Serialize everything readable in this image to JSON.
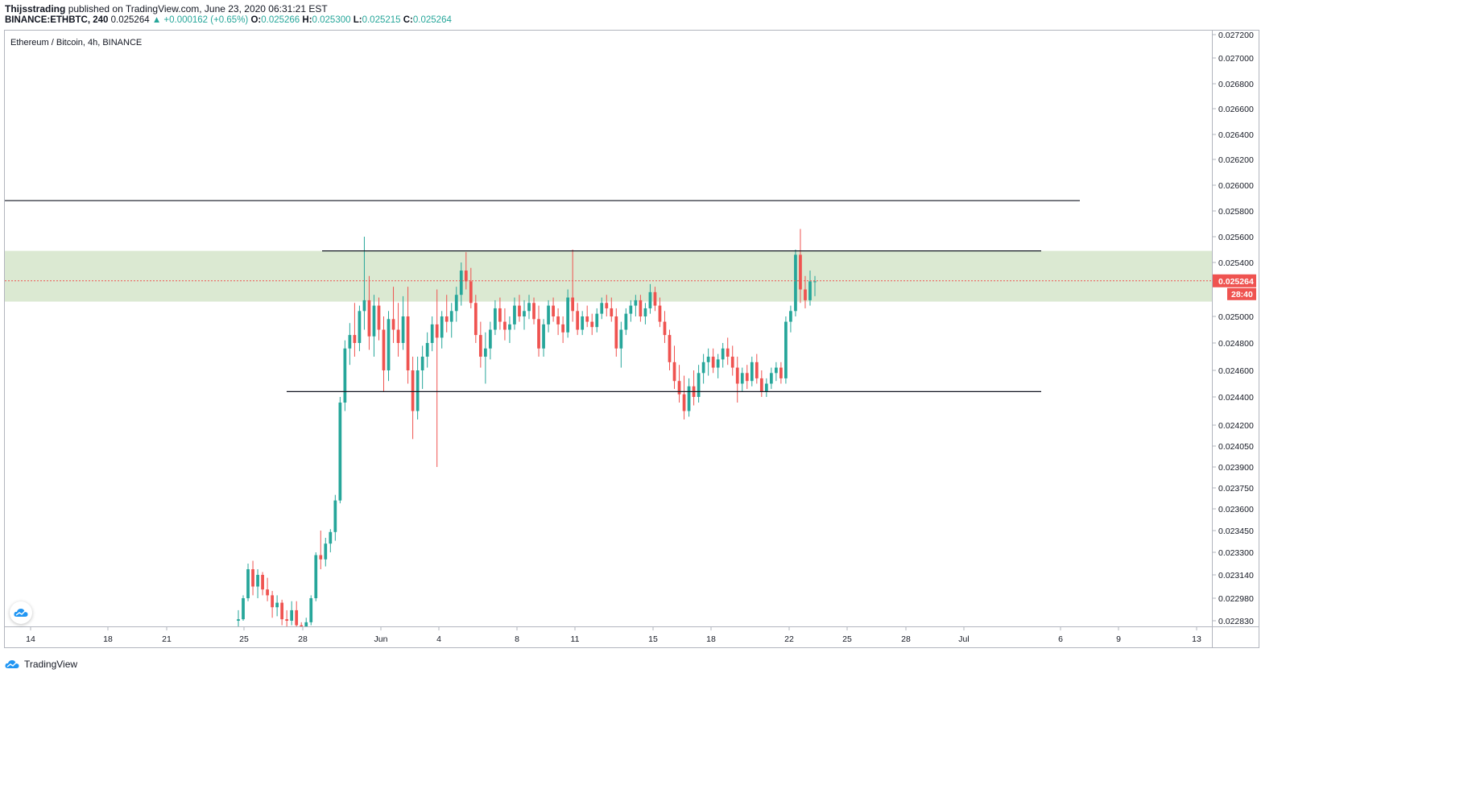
{
  "header": {
    "author": "Thijsstrading",
    "published": "published on TradingView.com, June 23, 2020 06:31:21 EST",
    "symbol_line": "BINANCE:ETHBTC, 240",
    "last": "0.025264",
    "change": "▲ +0.000162 (+0.65%)",
    "o_label": "O:",
    "o_value": "0.025266",
    "h_label": "H:",
    "h_value": "0.025300",
    "l_label": "L:",
    "l_value": "0.025215",
    "c_label": "C:",
    "c_value": "0.025264"
  },
  "footer": {
    "brand": "TradingView"
  },
  "colors": {
    "up": "#26a69a",
    "down": "#ef5350",
    "zone": "#dbe9d2",
    "price": "#ef5350"
  },
  "chart_data": {
    "type": "candlestick",
    "title": "Ethereum / Bitcoin, 4h, BINANCE",
    "x_ticks": [
      "14",
      "18",
      "21",
      "25",
      "28",
      "Jun",
      "4",
      "8",
      "11",
      "15",
      "18",
      "22",
      "25",
      "28",
      "Jul",
      "6",
      "9",
      "13"
    ],
    "y_ticks": [
      "0.027200",
      "0.027000",
      "0.026800",
      "0.026600",
      "0.026400",
      "0.026200",
      "0.026000",
      "0.025800",
      "0.025600",
      "0.025400",
      "0.025000",
      "0.024800",
      "0.024600",
      "0.024400",
      "0.024200",
      "0.024050",
      "0.023900",
      "0.023750",
      "0.023600",
      "0.023450",
      "0.023300",
      "0.023140",
      "0.022980",
      "0.022830"
    ],
    "last_price": "0.025264",
    "countdown": "28:40",
    "zone": [
      0.02511,
      0.02549
    ],
    "levels": [
      0.02588,
      0.02549,
      0.02444
    ],
    "ohlc": [
      [
        0.02283,
        0.0229,
        0.02278,
        0.02284
      ],
      [
        0.02284,
        0.023,
        0.02283,
        0.02298
      ],
      [
        0.02298,
        0.02322,
        0.02296,
        0.02318
      ],
      [
        0.02318,
        0.02324,
        0.023,
        0.02306
      ],
      [
        0.02306,
        0.02318,
        0.02298,
        0.02314
      ],
      [
        0.02314,
        0.02316,
        0.023,
        0.02304
      ],
      [
        0.02304,
        0.02312,
        0.02296,
        0.023
      ],
      [
        0.023,
        0.02303,
        0.02285,
        0.02292
      ],
      [
        0.02292,
        0.023,
        0.02286,
        0.02295
      ],
      [
        0.02295,
        0.02297,
        0.0228,
        0.02284
      ],
      [
        0.02284,
        0.0229,
        0.02275,
        0.02283
      ],
      [
        0.02283,
        0.02296,
        0.0228,
        0.0229
      ],
      [
        0.0229,
        0.02296,
        0.02276,
        0.0228
      ],
      [
        0.0228,
        0.02282,
        0.0227,
        0.02272
      ],
      [
        0.02272,
        0.02285,
        0.02268,
        0.02282
      ],
      [
        0.02282,
        0.023,
        0.0228,
        0.02298
      ],
      [
        0.02298,
        0.0233,
        0.02296,
        0.02328
      ],
      [
        0.02328,
        0.02345,
        0.02318,
        0.02325
      ],
      [
        0.02325,
        0.0234,
        0.0232,
        0.02336
      ],
      [
        0.02336,
        0.02346,
        0.0233,
        0.02344
      ],
      [
        0.02344,
        0.0237,
        0.02338,
        0.02366
      ],
      [
        0.02366,
        0.0244,
        0.02364,
        0.02436
      ],
      [
        0.02436,
        0.02482,
        0.0243,
        0.02476
      ],
      [
        0.02476,
        0.02495,
        0.02464,
        0.02486
      ],
      [
        0.02486,
        0.0251,
        0.0247,
        0.0248
      ],
      [
        0.0248,
        0.02508,
        0.02474,
        0.02504
      ],
      [
        0.02504,
        0.0256,
        0.0249,
        0.02512
      ],
      [
        0.02512,
        0.0253,
        0.02475,
        0.02485
      ],
      [
        0.02485,
        0.02516,
        0.0247,
        0.02508
      ],
      [
        0.02508,
        0.02514,
        0.02482,
        0.0249
      ],
      [
        0.0249,
        0.025,
        0.02444,
        0.0246
      ],
      [
        0.0246,
        0.02504,
        0.02452,
        0.02498
      ],
      [
        0.02498,
        0.02522,
        0.0248,
        0.0249
      ],
      [
        0.0249,
        0.0251,
        0.0247,
        0.0248
      ],
      [
        0.0248,
        0.02515,
        0.02475,
        0.025
      ],
      [
        0.025,
        0.02522,
        0.0245,
        0.0246
      ],
      [
        0.0246,
        0.0247,
        0.0241,
        0.0243
      ],
      [
        0.0243,
        0.0247,
        0.02424,
        0.0246
      ],
      [
        0.0246,
        0.02478,
        0.02446,
        0.0247
      ],
      [
        0.0247,
        0.02488,
        0.02462,
        0.0248
      ],
      [
        0.0248,
        0.025,
        0.02474,
        0.02494
      ],
      [
        0.02494,
        0.0252,
        0.0239,
        0.02484
      ],
      [
        0.02484,
        0.02504,
        0.02476,
        0.025
      ],
      [
        0.025,
        0.02516,
        0.02488,
        0.02496
      ],
      [
        0.02496,
        0.0251,
        0.02484,
        0.02504
      ],
      [
        0.02504,
        0.02522,
        0.02496,
        0.02516
      ],
      [
        0.02516,
        0.0254,
        0.02508,
        0.02534
      ],
      [
        0.02534,
        0.02548,
        0.0252,
        0.02526
      ],
      [
        0.02526,
        0.02536,
        0.02506,
        0.0251
      ],
      [
        0.0251,
        0.02516,
        0.0248,
        0.02486
      ],
      [
        0.02486,
        0.02496,
        0.02462,
        0.0247
      ],
      [
        0.0247,
        0.02488,
        0.0245,
        0.02476
      ],
      [
        0.02476,
        0.02496,
        0.02468,
        0.0249
      ],
      [
        0.0249,
        0.02512,
        0.02486,
        0.02506
      ],
      [
        0.02506,
        0.02514,
        0.0249,
        0.02496
      ],
      [
        0.02496,
        0.02506,
        0.02482,
        0.0249
      ],
      [
        0.0249,
        0.025,
        0.0248,
        0.02494
      ],
      [
        0.02494,
        0.02514,
        0.0249,
        0.02508
      ],
      [
        0.02508,
        0.02516,
        0.02496,
        0.025
      ],
      [
        0.025,
        0.02512,
        0.0249,
        0.02504
      ],
      [
        0.02504,
        0.02516,
        0.02498,
        0.0251
      ],
      [
        0.0251,
        0.02514,
        0.02494,
        0.02498
      ],
      [
        0.02498,
        0.02508,
        0.0247,
        0.02476
      ],
      [
        0.02476,
        0.02498,
        0.0247,
        0.02494
      ],
      [
        0.02494,
        0.02512,
        0.02488,
        0.02508
      ],
      [
        0.02508,
        0.02514,
        0.02496,
        0.025
      ],
      [
        0.025,
        0.02506,
        0.02486,
        0.02494
      ],
      [
        0.02494,
        0.025,
        0.0248,
        0.02488
      ],
      [
        0.02488,
        0.0252,
        0.02484,
        0.02514
      ],
      [
        0.02514,
        0.0255,
        0.02496,
        0.02504
      ],
      [
        0.02504,
        0.0251,
        0.02486,
        0.0249
      ],
      [
        0.0249,
        0.02504,
        0.02486,
        0.025
      ],
      [
        0.025,
        0.02508,
        0.02492,
        0.02496
      ],
      [
        0.02496,
        0.02502,
        0.02486,
        0.02492
      ],
      [
        0.02492,
        0.02506,
        0.02488,
        0.02502
      ],
      [
        0.02502,
        0.02514,
        0.02498,
        0.0251
      ],
      [
        0.0251,
        0.02516,
        0.025,
        0.02506
      ],
      [
        0.02506,
        0.02514,
        0.02496,
        0.025
      ],
      [
        0.025,
        0.02506,
        0.0247,
        0.02476
      ],
      [
        0.02476,
        0.02496,
        0.02462,
        0.0249
      ],
      [
        0.0249,
        0.02506,
        0.02486,
        0.02502
      ],
      [
        0.02502,
        0.02512,
        0.02496,
        0.02508
      ],
      [
        0.02508,
        0.02516,
        0.025,
        0.02512
      ],
      [
        0.02512,
        0.02516,
        0.02496,
        0.025
      ],
      [
        0.025,
        0.0251,
        0.02494,
        0.02506
      ],
      [
        0.02506,
        0.02524,
        0.02502,
        0.02518
      ],
      [
        0.02518,
        0.02522,
        0.02504,
        0.02508
      ],
      [
        0.02508,
        0.02514,
        0.02492,
        0.02496
      ],
      [
        0.02496,
        0.02504,
        0.0248,
        0.02486
      ],
      [
        0.02486,
        0.0249,
        0.0246,
        0.02466
      ],
      [
        0.02466,
        0.02478,
        0.02446,
        0.02452
      ],
      [
        0.02452,
        0.02464,
        0.02436,
        0.02442
      ],
      [
        0.02442,
        0.02456,
        0.02424,
        0.0243
      ],
      [
        0.0243,
        0.02454,
        0.02426,
        0.02448
      ],
      [
        0.02448,
        0.0246,
        0.02434,
        0.0244
      ],
      [
        0.0244,
        0.02464,
        0.02436,
        0.02458
      ],
      [
        0.02458,
        0.02472,
        0.0245,
        0.02466
      ],
      [
        0.02466,
        0.02476,
        0.02456,
        0.0247
      ],
      [
        0.0247,
        0.02476,
        0.02458,
        0.02462
      ],
      [
        0.02462,
        0.02472,
        0.02454,
        0.02468
      ],
      [
        0.02468,
        0.0248,
        0.02462,
        0.02476
      ],
      [
        0.02476,
        0.02484,
        0.02464,
        0.0247
      ],
      [
        0.0247,
        0.02478,
        0.02456,
        0.02462
      ],
      [
        0.02462,
        0.0247,
        0.02436,
        0.0245
      ],
      [
        0.0245,
        0.02462,
        0.02444,
        0.02458
      ],
      [
        0.02458,
        0.02464,
        0.02446,
        0.02452
      ],
      [
        0.02452,
        0.0247,
        0.02448,
        0.02466
      ],
      [
        0.02466,
        0.02472,
        0.0245,
        0.02454
      ],
      [
        0.02454,
        0.0246,
        0.0244,
        0.02444
      ],
      [
        0.02444,
        0.02454,
        0.0244,
        0.0245
      ],
      [
        0.0245,
        0.02462,
        0.02446,
        0.02458
      ],
      [
        0.02458,
        0.02466,
        0.02452,
        0.02462
      ],
      [
        0.02462,
        0.02466,
        0.0245,
        0.02454
      ],
      [
        0.02454,
        0.025,
        0.0245,
        0.02496
      ],
      [
        0.02496,
        0.02508,
        0.02488,
        0.02504
      ],
      [
        0.02504,
        0.0255,
        0.025,
        0.02546
      ],
      [
        0.02546,
        0.02566,
        0.0251,
        0.0252
      ],
      [
        0.0252,
        0.0253,
        0.02506,
        0.02512
      ],
      [
        0.02512,
        0.02534,
        0.02508,
        0.02526
      ],
      [
        0.02526,
        0.0253,
        0.02515,
        0.02526
      ]
    ]
  }
}
